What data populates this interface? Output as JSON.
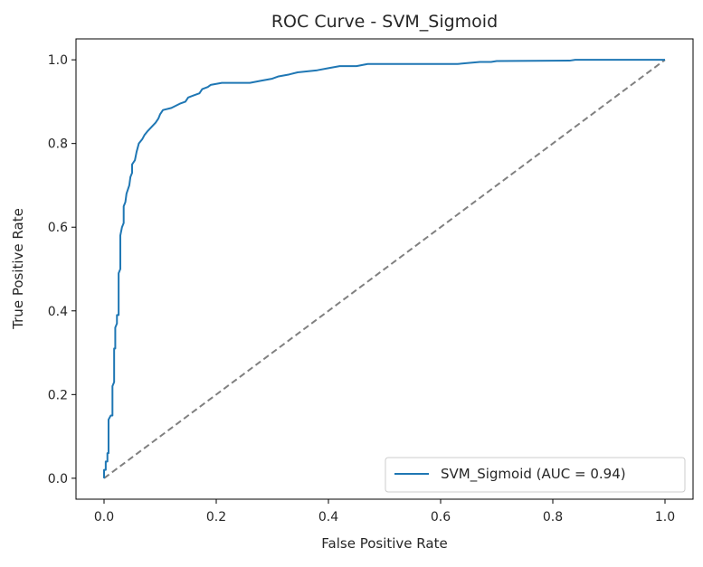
{
  "chart_data": {
    "type": "line",
    "title": "ROC Curve - SVM_Sigmoid",
    "xlabel": "False Positive Rate",
    "ylabel": "True Positive Rate",
    "xlim": [
      -0.05,
      1.05
    ],
    "ylim": [
      -0.05,
      1.05
    ],
    "xticks": [
      0.0,
      0.2,
      0.4,
      0.6,
      0.8,
      1.0
    ],
    "xtick_labels": [
      "0.0",
      "0.2",
      "0.4",
      "0.6",
      "0.8",
      "1.0"
    ],
    "yticks": [
      0.0,
      0.2,
      0.4,
      0.6,
      0.8,
      1.0
    ],
    "ytick_labels": [
      "0.0",
      "0.2",
      "0.4",
      "0.6",
      "0.8",
      "1.0"
    ],
    "grid": false,
    "legend_position": "lower right",
    "series": [
      {
        "name": "SVM_Sigmoid (AUC = 0.94)",
        "color": "#1f77b4",
        "style": "solid",
        "points": [
          [
            0.0,
            0.0
          ],
          [
            0.0,
            0.02
          ],
          [
            0.003,
            0.02
          ],
          [
            0.003,
            0.04
          ],
          [
            0.006,
            0.04
          ],
          [
            0.006,
            0.06
          ],
          [
            0.008,
            0.06
          ],
          [
            0.008,
            0.14
          ],
          [
            0.012,
            0.15
          ],
          [
            0.015,
            0.15
          ],
          [
            0.015,
            0.22
          ],
          [
            0.018,
            0.23
          ],
          [
            0.018,
            0.31
          ],
          [
            0.02,
            0.31
          ],
          [
            0.02,
            0.36
          ],
          [
            0.023,
            0.37
          ],
          [
            0.023,
            0.39
          ],
          [
            0.026,
            0.39
          ],
          [
            0.026,
            0.49
          ],
          [
            0.029,
            0.5
          ],
          [
            0.029,
            0.58
          ],
          [
            0.032,
            0.6
          ],
          [
            0.035,
            0.61
          ],
          [
            0.035,
            0.65
          ],
          [
            0.038,
            0.66
          ],
          [
            0.04,
            0.68
          ],
          [
            0.045,
            0.7
          ],
          [
            0.047,
            0.72
          ],
          [
            0.05,
            0.73
          ],
          [
            0.05,
            0.75
          ],
          [
            0.055,
            0.76
          ],
          [
            0.058,
            0.78
          ],
          [
            0.062,
            0.8
          ],
          [
            0.068,
            0.81
          ],
          [
            0.072,
            0.82
          ],
          [
            0.078,
            0.83
          ],
          [
            0.085,
            0.84
          ],
          [
            0.092,
            0.85
          ],
          [
            0.097,
            0.86
          ],
          [
            0.1,
            0.87
          ],
          [
            0.105,
            0.88
          ],
          [
            0.12,
            0.885
          ],
          [
            0.135,
            0.895
          ],
          [
            0.145,
            0.9
          ],
          [
            0.15,
            0.91
          ],
          [
            0.16,
            0.915
          ],
          [
            0.17,
            0.92
          ],
          [
            0.175,
            0.93
          ],
          [
            0.185,
            0.935
          ],
          [
            0.19,
            0.94
          ],
          [
            0.21,
            0.945
          ],
          [
            0.26,
            0.945
          ],
          [
            0.28,
            0.95
          ],
          [
            0.3,
            0.955
          ],
          [
            0.31,
            0.96
          ],
          [
            0.33,
            0.965
          ],
          [
            0.345,
            0.97
          ],
          [
            0.38,
            0.975
          ],
          [
            0.4,
            0.98
          ],
          [
            0.42,
            0.985
          ],
          [
            0.45,
            0.985
          ],
          [
            0.47,
            0.99
          ],
          [
            0.6,
            0.99
          ],
          [
            0.63,
            0.99
          ],
          [
            0.67,
            0.995
          ],
          [
            0.69,
            0.995
          ],
          [
            0.7,
            0.997
          ],
          [
            0.83,
            0.998
          ],
          [
            0.84,
            1.0
          ],
          [
            1.0,
            1.0
          ]
        ]
      },
      {
        "name": "",
        "color": "#808080",
        "style": "dashed",
        "points": [
          [
            0.0,
            0.0
          ],
          [
            1.0,
            1.0
          ]
        ]
      }
    ]
  }
}
